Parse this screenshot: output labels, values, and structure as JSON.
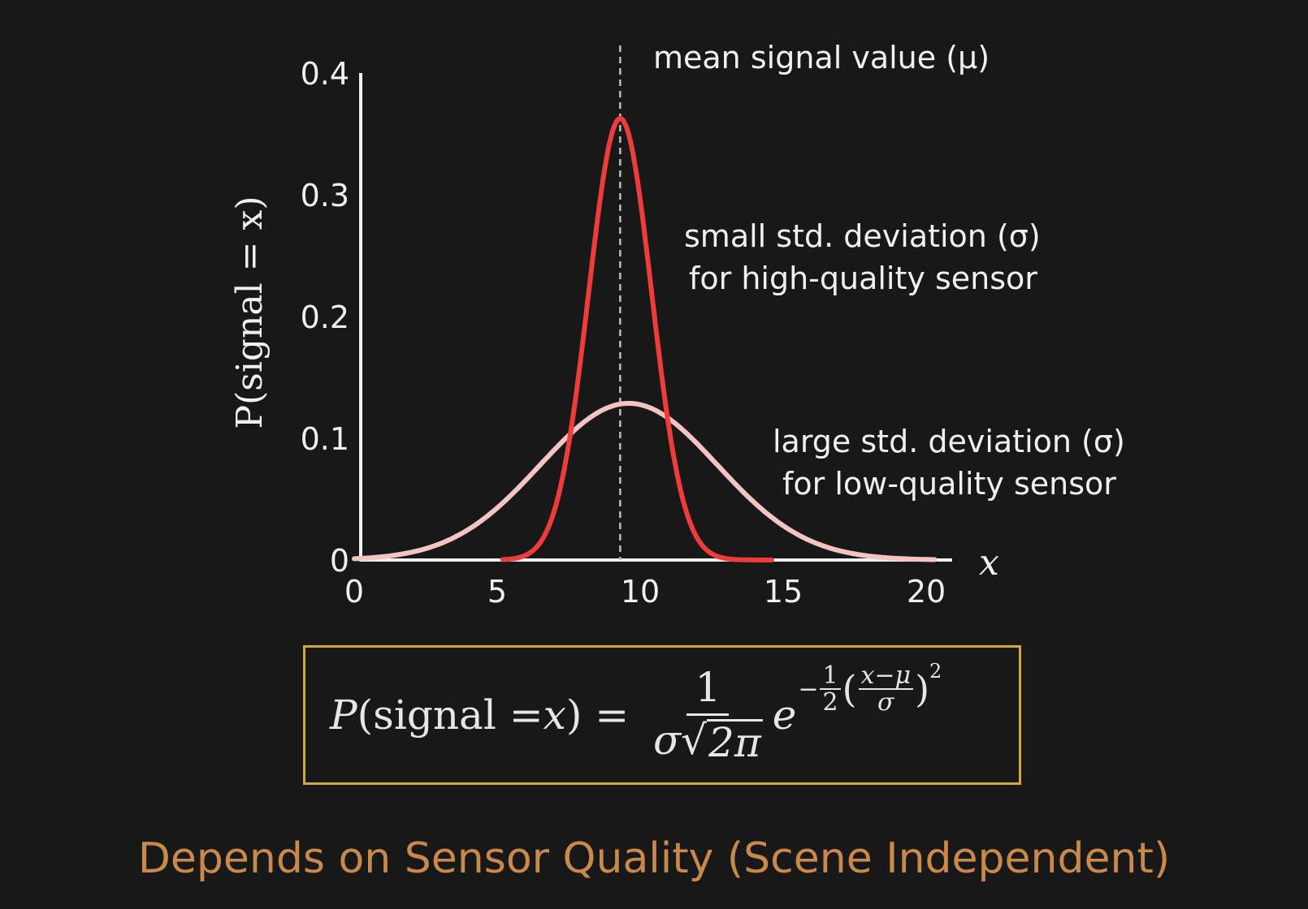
{
  "chart_data": {
    "type": "line",
    "xlabel": "x",
    "ylabel": "P(signal = x)",
    "xlim": [
      0,
      20
    ],
    "ylim": [
      0,
      0.4
    ],
    "x_ticks": [
      "0",
      "5",
      "10",
      "15",
      "20"
    ],
    "x_tick_values": [
      0,
      5,
      10,
      15,
      20
    ],
    "y_ticks": [
      "0",
      "0.1",
      "0.2",
      "0.3",
      "0.4"
    ],
    "y_tick_values": [
      0,
      0.1,
      0.2,
      0.3,
      0.4
    ],
    "grid": false,
    "series": [
      {
        "mean": 9.3,
        "std": 1.1,
        "x_start": 5.2,
        "x_end": 14.6,
        "color": "#ee3b3b"
      },
      {
        "mean": 9.6,
        "std": 3.1,
        "x_start": 0,
        "x_end": 20.3,
        "color": "#f4c4c4"
      }
    ],
    "mean_line_x": 9.3,
    "annotations": {
      "mean": "mean signal value (μ)",
      "small_line1": "small std. deviation (σ)",
      "small_line2": "for high-quality sensor",
      "large_line1": "large std. deviation (σ)",
      "large_line2": "for low-quality sensor"
    }
  },
  "formula": {
    "lhs_P": "P",
    "lhs_arg": "(signal = ",
    "lhs_x": "x",
    "lhs_close": ") = ",
    "num": "1",
    "den_sigma": "σ",
    "den_root_symbol": "√",
    "den_root": "2π",
    "e": "e",
    "exp_minus": "−",
    "exp_half_num": "1",
    "exp_half_den": "2",
    "exp_open": "(",
    "exp_frac_num": "x−μ",
    "exp_frac_den": "σ",
    "exp_close": ")",
    "exp_power": "2"
  },
  "colors": {
    "background": "#181818",
    "axis": "#f0f0f0",
    "text": "#f0f0f0",
    "box_border": "#d4a93a",
    "footer": "#c9894a"
  },
  "footer": "Depends on Sensor Quality (Scene Independent)"
}
